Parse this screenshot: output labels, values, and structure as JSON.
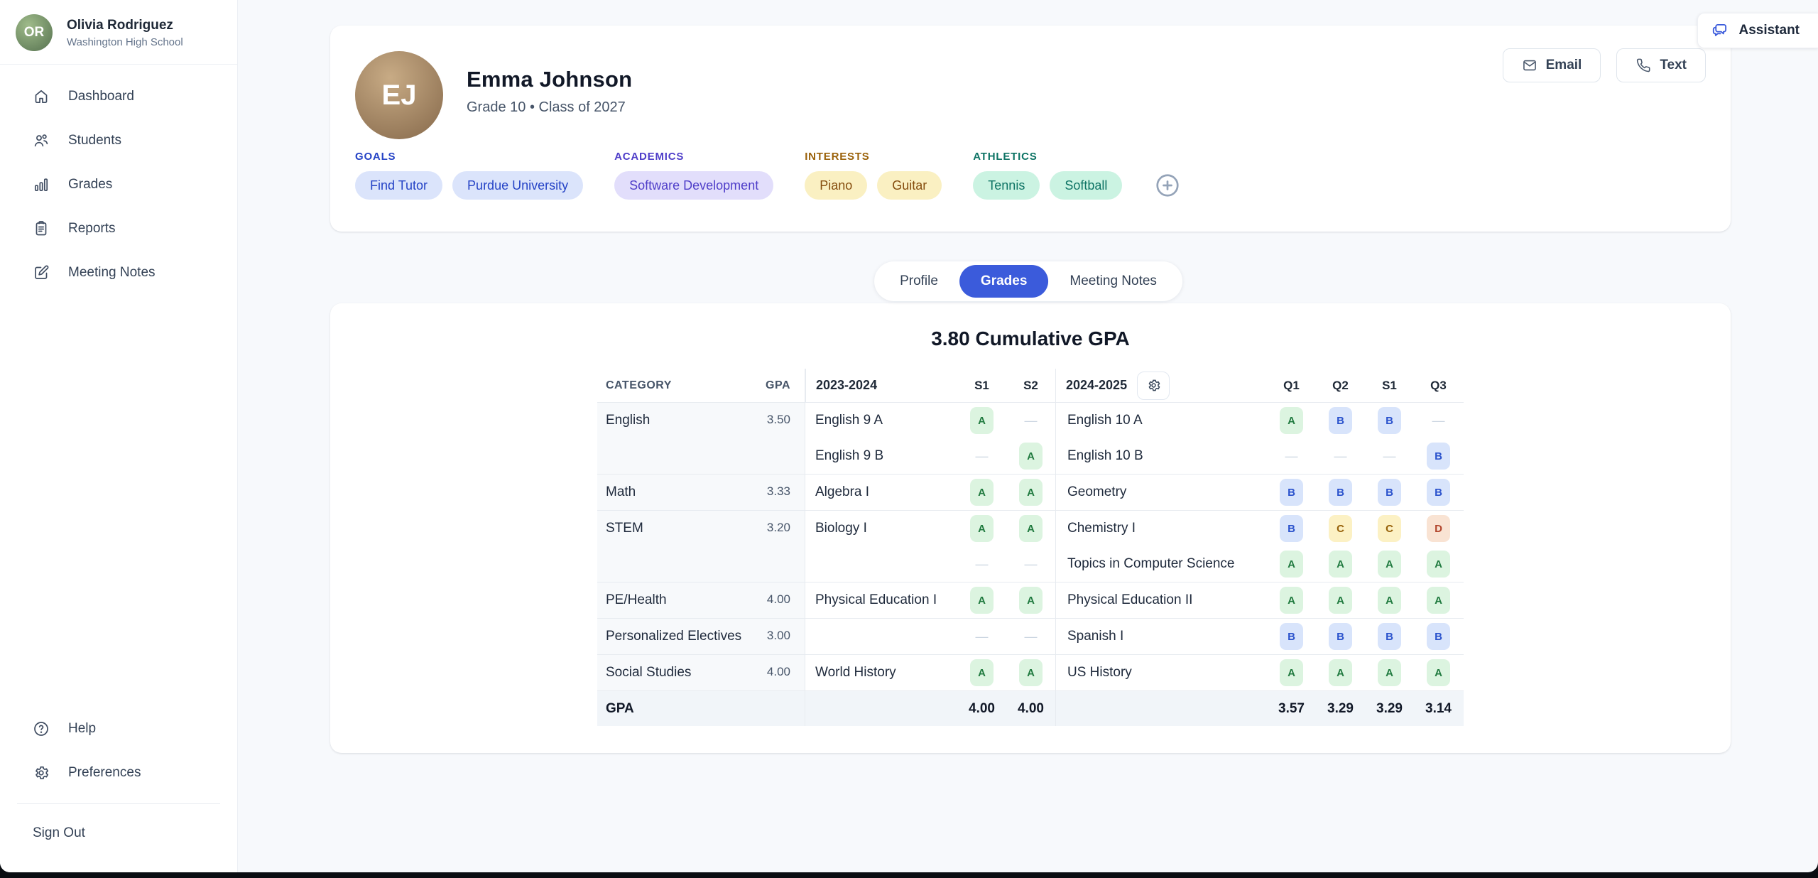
{
  "app": {
    "accent_color": "#3b5bdb",
    "assistant_label": "Assistant",
    "assistant_icon": "chat"
  },
  "sidebar": {
    "user": {
      "name": "Olivia Rodriguez",
      "school": "Washington High School",
      "initials": "OR"
    },
    "nav": [
      {
        "label": "Dashboard",
        "icon": "home"
      },
      {
        "label": "Students",
        "icon": "users"
      },
      {
        "label": "Grades",
        "icon": "chart"
      },
      {
        "label": "Reports",
        "icon": "clipboard"
      },
      {
        "label": "Meeting Notes",
        "icon": "edit"
      }
    ],
    "footer_nav": [
      {
        "label": "Help",
        "icon": "help"
      },
      {
        "label": "Preferences",
        "icon": "gear"
      }
    ],
    "sign_out": "Sign Out"
  },
  "student": {
    "name": "Emma Johnson",
    "subtitle": "Grade 10 • Class of 2027",
    "initials": "EJ",
    "actions": {
      "email": "Email",
      "email_icon": "mail",
      "text": "Text",
      "text_icon": "phone",
      "add_tag_icon": "plus"
    },
    "tag_groups": [
      {
        "label": "GOALS",
        "scheme": "blue",
        "tags": [
          "Find Tutor",
          "Purdue University"
        ]
      },
      {
        "label": "ACADEMICS",
        "scheme": "indigo",
        "tags": [
          "Software Development"
        ]
      },
      {
        "label": "INTERESTS",
        "scheme": "amber",
        "tags": [
          "Piano",
          "Guitar"
        ]
      },
      {
        "label": "ATHLETICS",
        "scheme": "teal",
        "tags": [
          "Tennis",
          "Softball"
        ]
      }
    ],
    "tag_schemes": {
      "blue": {
        "label": "#2543c6",
        "bg": "#dbe4fb",
        "fg": "#2543c6"
      },
      "indigo": {
        "label": "#4f3ec9",
        "bg": "#e2defb",
        "fg": "#4f3ec9"
      },
      "amber": {
        "label": "#9a6109",
        "bg": "#faf0c2",
        "fg": "#854d0e"
      },
      "teal": {
        "label": "#0e7465",
        "bg": "#cbf3e2",
        "fg": "#0e7465"
      }
    }
  },
  "tabs": {
    "items": [
      "Profile",
      "Grades",
      "Meeting Notes"
    ],
    "active": "Grades"
  },
  "grades": {
    "title": "3.80 Cumulative GPA",
    "columns": {
      "category": "CATEGORY",
      "gpa": "GPA",
      "year1": "2023-2024",
      "s1": "S1",
      "s2": "S2",
      "year2": "2024-2025",
      "settings_icon": "gear",
      "q1": "Q1",
      "q2": "Q2",
      "s1b": "S1",
      "q3": "Q3"
    },
    "grade_colors": {
      "A": {
        "bg": "#dcf4e0",
        "fg": "#207a3f"
      },
      "B": {
        "bg": "#d8e4fb",
        "fg": "#2a52cc"
      },
      "C": {
        "bg": "#fcf1c4",
        "fg": "#976109"
      },
      "D": {
        "bg": "#f9e3d3",
        "fg": "#b2452c"
      }
    },
    "groups": [
      {
        "category": "English",
        "gpa": "3.50",
        "rows": [
          {
            "course1": "English 9 A",
            "sem": [
              "A",
              "-"
            ],
            "course2": "English 10 A",
            "q": [
              "A",
              "B",
              "B",
              "-"
            ]
          },
          {
            "course1": "English 9 B",
            "sem": [
              "-",
              "A"
            ],
            "course2": "English 10 B",
            "q": [
              "-",
              "-",
              "-",
              "B"
            ]
          }
        ]
      },
      {
        "category": "Math",
        "gpa": "3.33",
        "rows": [
          {
            "course1": "Algebra I",
            "sem": [
              "A",
              "A"
            ],
            "course2": "Geometry",
            "q": [
              "B",
              "B",
              "B",
              "B"
            ]
          }
        ]
      },
      {
        "category": "STEM",
        "gpa": "3.20",
        "rows": [
          {
            "course1": "Biology I",
            "sem": [
              "A",
              "A"
            ],
            "course2": "Chemistry I",
            "q": [
              "B",
              "C",
              "C",
              "D"
            ]
          },
          {
            "course1": "",
            "sem": [
              "-",
              "-"
            ],
            "course2": "Topics in Computer Science",
            "q": [
              "A",
              "A",
              "A",
              "A"
            ]
          }
        ]
      },
      {
        "category": "PE/Health",
        "gpa": "4.00",
        "rows": [
          {
            "course1": "Physical Education I",
            "sem": [
              "A",
              "A"
            ],
            "course2": "Physical Education II",
            "q": [
              "A",
              "A",
              "A",
              "A"
            ]
          }
        ]
      },
      {
        "category": "Personalized Electives",
        "gpa": "3.00",
        "rows": [
          {
            "course1": "",
            "sem": [
              "-",
              "-"
            ],
            "course2": "Spanish I",
            "q": [
              "B",
              "B",
              "B",
              "B"
            ]
          }
        ]
      },
      {
        "category": "Social Studies",
        "gpa": "4.00",
        "rows": [
          {
            "course1": "World History",
            "sem": [
              "A",
              "A"
            ],
            "course2": "US History",
            "q": [
              "A",
              "A",
              "A",
              "A"
            ]
          }
        ]
      }
    ],
    "footer": {
      "label": "GPA",
      "sem": [
        "4.00",
        "4.00"
      ],
      "quarters": [
        "3.57",
        "3.29",
        "3.29",
        "3.14"
      ]
    }
  }
}
